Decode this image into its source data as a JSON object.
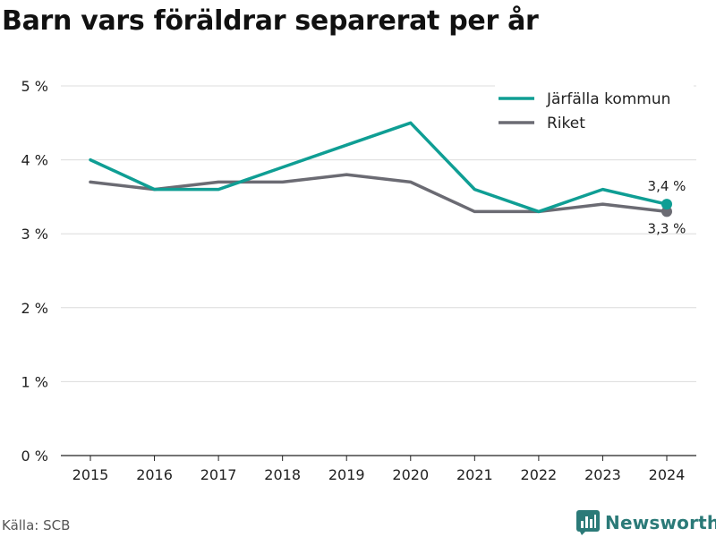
{
  "title": "Barn vars föräldrar separerat per år",
  "source": "Källa: SCB",
  "brand": {
    "name": "Newsworthy",
    "icon": "bar-chart-logo-icon",
    "color": "#2b7a78"
  },
  "chart_data": {
    "type": "line",
    "categories": [
      "2015",
      "2016",
      "2017",
      "2018",
      "2019",
      "2020",
      "2021",
      "2022",
      "2023",
      "2024"
    ],
    "series": [
      {
        "name": "Järfälla kommun",
        "color": "#0f9e94",
        "values": [
          4.0,
          3.6,
          3.6,
          3.9,
          4.2,
          4.5,
          3.6,
          3.3,
          3.6,
          3.4
        ]
      },
      {
        "name": "Riket",
        "color": "#6b6b73",
        "values": [
          3.7,
          3.6,
          3.7,
          3.7,
          3.8,
          3.7,
          3.3,
          3.3,
          3.4,
          3.3
        ]
      }
    ],
    "y_ticks": [
      "0 %",
      "1 %",
      "2 %",
      "3 %",
      "4 %",
      "5 %"
    ],
    "ylim": [
      0,
      5
    ],
    "grid": true,
    "legend": "top-right",
    "end_labels": [
      "3,4 %",
      "3,3 %"
    ]
  }
}
